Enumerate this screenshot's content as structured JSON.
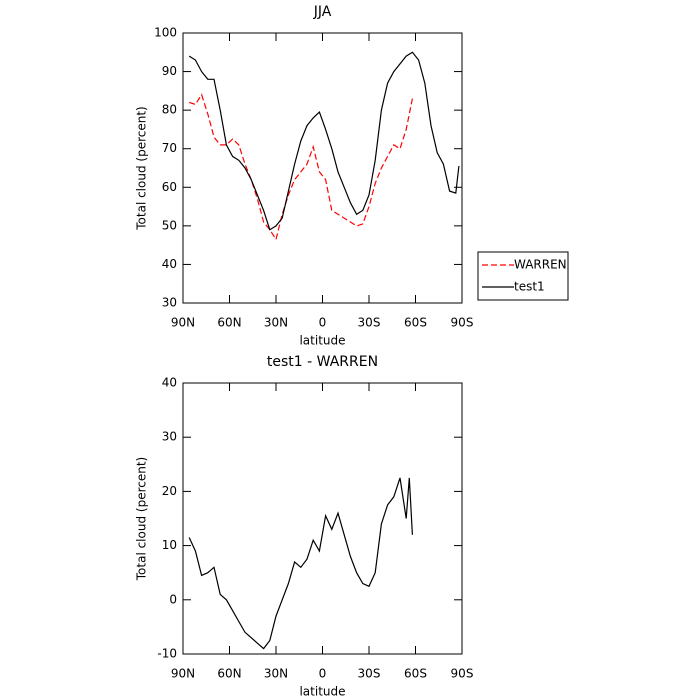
{
  "chart_data": [
    {
      "type": "line",
      "title": "JJA",
      "xlabel": "latitude",
      "ylabel": "Total cloud (percent)",
      "x": [
        86,
        82,
        78,
        74,
        70,
        66,
        62,
        58,
        54,
        50,
        46,
        42,
        38,
        34,
        30,
        26,
        22,
        18,
        14,
        10,
        6,
        2,
        -2,
        -6,
        -10,
        -14,
        -18,
        -22,
        -26,
        -30,
        -34,
        -38,
        -42,
        -46,
        -50,
        -54,
        -58,
        -62,
        -66,
        -70,
        -74,
        -78,
        -82,
        -86,
        -88
      ],
      "series": [
        {
          "name": "WARREN",
          "color": "#ff0000",
          "dash": true,
          "values": [
            82,
            81.5,
            84,
            79,
            73,
            71,
            71,
            72.5,
            71,
            66,
            62,
            57,
            51,
            49,
            46.5,
            53,
            58,
            62,
            64,
            66,
            70.5,
            64,
            62,
            54,
            53,
            52,
            51,
            50,
            50.5,
            55,
            61,
            65,
            68,
            71,
            70,
            75,
            83,
            null,
            null,
            null,
            null,
            null,
            null,
            null,
            null
          ]
        },
        {
          "name": "test1",
          "color": "#000000",
          "dash": false,
          "values": [
            94,
            93,
            90,
            88,
            88,
            80,
            71,
            68,
            67,
            65,
            62,
            58,
            54,
            49,
            50,
            52,
            59,
            66,
            72,
            76,
            78,
            79.5,
            75,
            70,
            64,
            60,
            56,
            53,
            54,
            58,
            67,
            80,
            87,
            90,
            92,
            94,
            95,
            93,
            87,
            76,
            69,
            66,
            59,
            58.5,
            65.5
          ]
        }
      ],
      "xlim": [
        90,
        -90
      ],
      "ylim": [
        30,
        100
      ],
      "xticks": [
        {
          "value": 90,
          "label": "90N"
        },
        {
          "value": 60,
          "label": "60N"
        },
        {
          "value": 30,
          "label": "30N"
        },
        0,
        {
          "value": -30,
          "label": "30S"
        },
        {
          "value": -60,
          "label": "60S"
        },
        {
          "value": -90,
          "label": "90S"
        }
      ],
      "yticks": [
        30,
        40,
        50,
        60,
        70,
        80,
        90,
        100
      ],
      "legend": "outside right"
    },
    {
      "type": "line",
      "title": "test1 - WARREN",
      "xlabel": "latitude",
      "ylabel": "Total cloud (percent)",
      "x": [
        86,
        82,
        78,
        74,
        70,
        66,
        62,
        58,
        54,
        50,
        46,
        42,
        38,
        34,
        30,
        26,
        22,
        18,
        14,
        10,
        6,
        2,
        -2,
        -6,
        -10,
        -14,
        -18,
        -22,
        -26,
        -30,
        -34,
        -38,
        -42,
        -46,
        -50,
        -54,
        -56,
        -58
      ],
      "series": [
        {
          "color": "#000000",
          "dash": false,
          "values": [
            11.5,
            9,
            4.5,
            5,
            6,
            1,
            0,
            -2,
            -4,
            -6,
            -7,
            -8,
            -9,
            -7.5,
            -3,
            0,
            3,
            7,
            6,
            7.5,
            11,
            9,
            15.5,
            13,
            16,
            12,
            8,
            5,
            3,
            2.5,
            5,
            14,
            17.5,
            19,
            22.5,
            15,
            22.5,
            12
          ]
        }
      ],
      "xlim": [
        90,
        -90
      ],
      "ylim": [
        -10,
        40
      ],
      "xticks": [
        {
          "value": 90,
          "label": "90N"
        },
        {
          "value": 60,
          "label": "60N"
        },
        {
          "value": 30,
          "label": "30N"
        },
        0,
        {
          "value": -30,
          "label": "30S"
        },
        {
          "value": -60,
          "label": "60S"
        },
        {
          "value": -90,
          "label": "90S"
        }
      ],
      "yticks": [
        -10,
        0,
        10,
        20,
        30,
        40
      ]
    }
  ]
}
